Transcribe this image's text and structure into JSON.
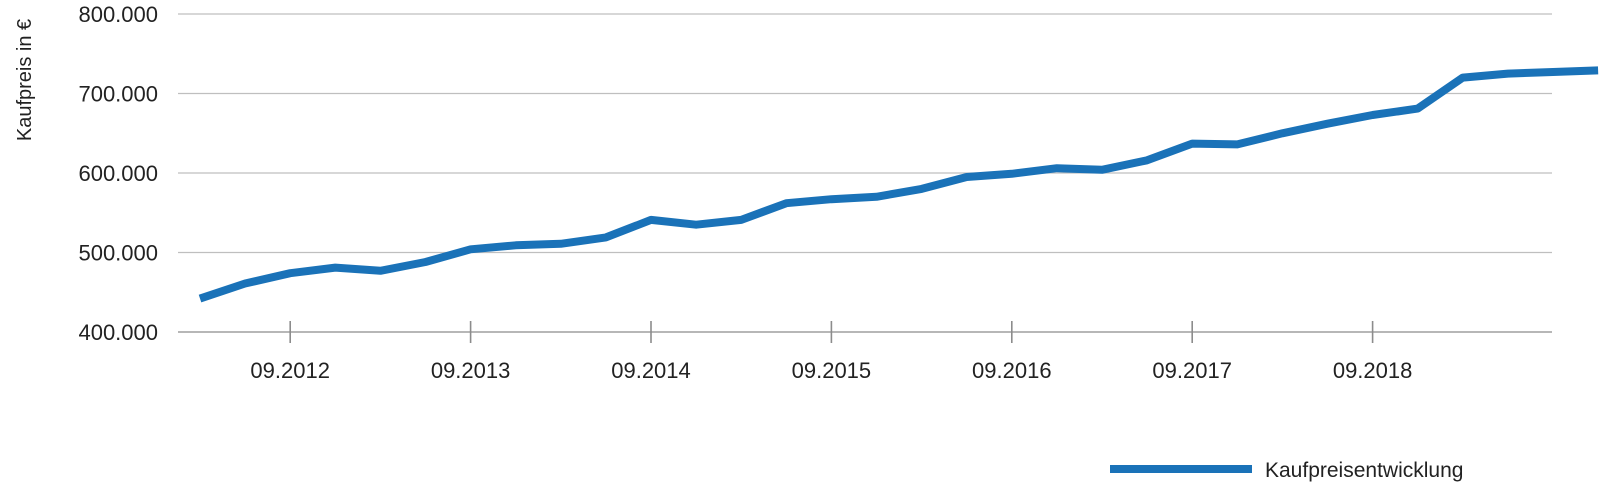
{
  "chart_data": {
    "type": "line",
    "ylabel": "Kaufpreis in €",
    "ylim": [
      400000,
      800000
    ],
    "y_ticks": [
      400000,
      500000,
      600000,
      700000,
      800000
    ],
    "y_tick_labels": [
      "400.000",
      "500.000",
      "600.000",
      "700.000",
      "800.000"
    ],
    "x_tick_labels": [
      "09.2012",
      "09.2013",
      "09.2014",
      "09.2015",
      "09.2016",
      "09.2017",
      "09.2018"
    ],
    "grid": true,
    "legend_position": "bottom-right",
    "colors": {
      "series": "#1a72b8",
      "grid": "#bfbfbf",
      "axis": "#8c8c8c"
    },
    "series": [
      {
        "name": "Kaufpreisentwicklung",
        "x": [
          "03.2012",
          "06.2012",
          "09.2012",
          "12.2012",
          "03.2013",
          "06.2013",
          "09.2013",
          "12.2013",
          "03.2014",
          "06.2014",
          "09.2014",
          "12.2014",
          "03.2015",
          "06.2015",
          "09.2015",
          "12.2015",
          "03.2016",
          "06.2016",
          "09.2016",
          "12.2016",
          "03.2017",
          "06.2017",
          "09.2017",
          "12.2017",
          "03.2018",
          "06.2018",
          "09.2018",
          "12.2018",
          "03.2019",
          "06.2019",
          "09.2019",
          "12.2019"
        ],
        "values": [
          442000,
          461000,
          474000,
          481000,
          477000,
          488000,
          504000,
          509000,
          511000,
          519000,
          541000,
          535000,
          541000,
          562000,
          567000,
          570000,
          580000,
          595000,
          599000,
          606000,
          604000,
          616000,
          637000,
          636000,
          650000,
          662000,
          673000,
          681000,
          720000,
          725000,
          727000,
          729000
        ]
      }
    ]
  }
}
